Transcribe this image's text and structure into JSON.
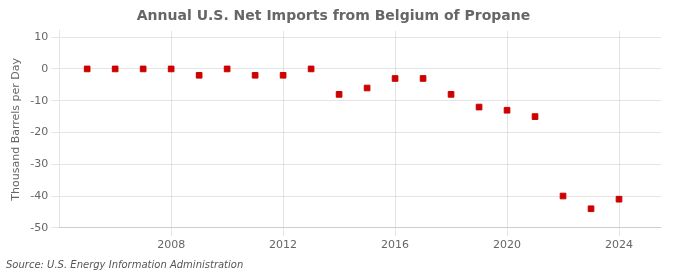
{
  "chart_data": {
    "type": "scatter",
    "title": "Annual U.S. Net Imports from Belgium of Propane",
    "ylabel": "Thousand Barrels per Day",
    "source": "Source: U.S. Energy Information Administration",
    "x": [
      2005,
      2006,
      2007,
      2008,
      2009,
      2010,
      2011,
      2012,
      2013,
      2014,
      2015,
      2016,
      2017,
      2018,
      2019,
      2020,
      2021,
      2022,
      2023,
      2024
    ],
    "values": [
      0,
      0,
      0,
      0,
      -2,
      0,
      -2,
      -2,
      0,
      -8,
      -6,
      -3,
      -3,
      -8,
      -12,
      -13,
      -15,
      -40,
      -44,
      -41
    ],
    "color": "#cc0000",
    "marker": "square",
    "xlim": [
      2004.0,
      2025.5
    ],
    "ylim": [
      -50,
      12
    ],
    "xticks": [
      2008,
      2012,
      2016,
      2020,
      2024
    ],
    "yticks": [
      10,
      0,
      -10,
      -20,
      -30,
      -40,
      -50
    ],
    "grid": true
  }
}
